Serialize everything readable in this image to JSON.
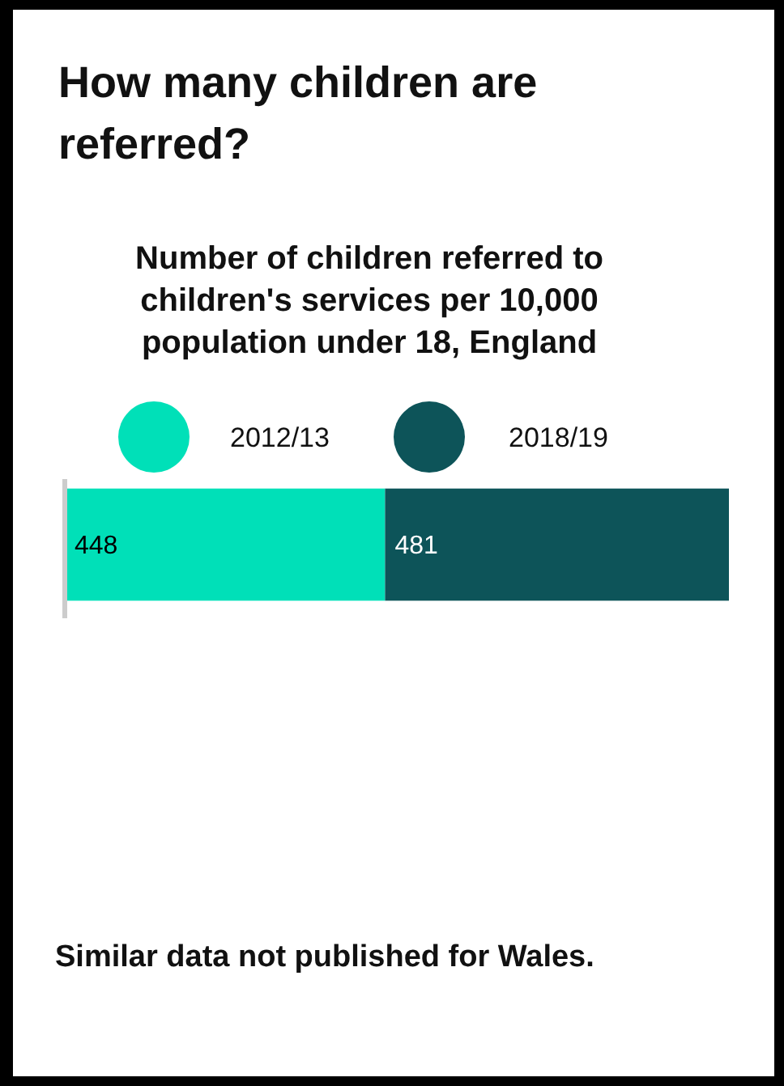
{
  "chart_data": {
    "type": "bar",
    "title": "How many children are referred?",
    "subtitle": "Number of children referred to children's services per 10,000 population under 18, England",
    "orientation": "horizontal",
    "stacked": true,
    "categories": [
      null
    ],
    "series": [
      {
        "name": "2012/13",
        "color": "#00e0b8",
        "values": [
          448
        ]
      },
      {
        "name": "2018/19",
        "color": "#0d5459",
        "values": [
          481
        ]
      }
    ],
    "data_labels": true,
    "legend": "top",
    "annotations": [
      "Similar data not published for Wales."
    ]
  }
}
